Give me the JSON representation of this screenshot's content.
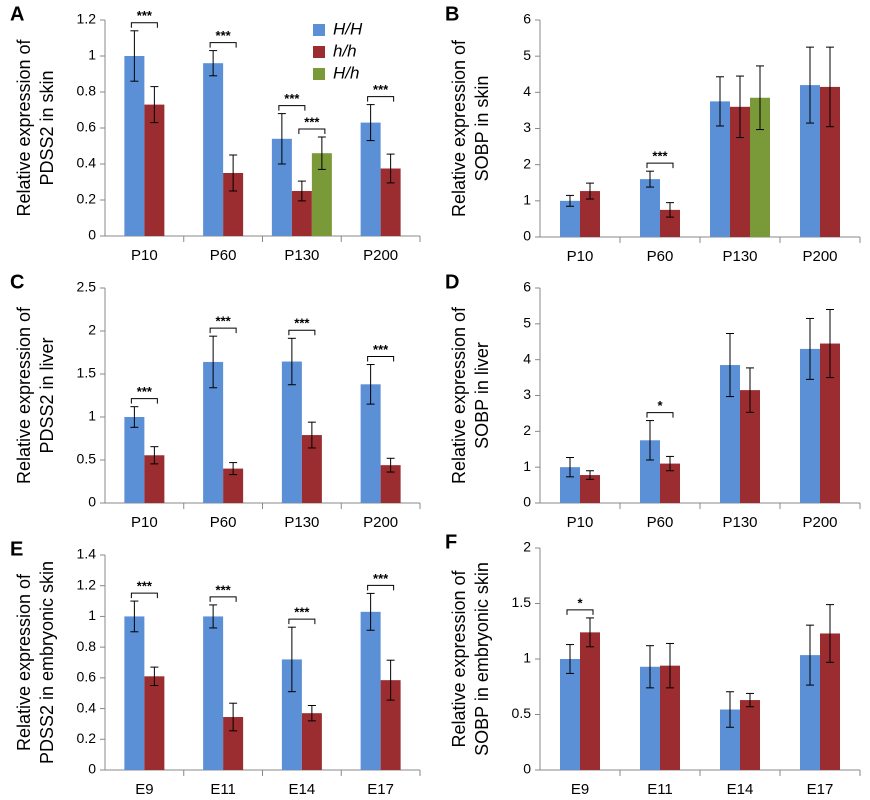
{
  "chart_data": [
    {
      "type": "bar",
      "label": "A",
      "ylabel": [
        "Relative expression of",
        "PDSS2 in skin"
      ],
      "categories": [
        "P10",
        "P60",
        "P130",
        "P200"
      ],
      "ylim": [
        0,
        1.2
      ],
      "yticks": [
        0,
        0.2,
        0.4,
        0.6,
        0.8,
        1,
        1.2
      ],
      "legend": true,
      "series": [
        {
          "name": "H/H",
          "color": "#5b8fd6",
          "values": [
            1.0,
            0.96,
            0.54,
            0.63
          ],
          "errors": [
            0.14,
            0.07,
            0.14,
            0.1
          ]
        },
        {
          "name": "h/h",
          "color": "#9b2d30",
          "values": [
            0.73,
            0.35,
            0.25,
            0.375
          ],
          "errors": [
            0.1,
            0.1,
            0.055,
            0.08
          ],
          "significance": [
            "***",
            "***",
            "***",
            "***"
          ]
        },
        {
          "name": "H/h",
          "color": "#7a9a3a",
          "values": [
            null,
            null,
            0.46,
            null
          ],
          "errors": [
            null,
            null,
            0.09,
            null
          ],
          "significance": [
            null,
            null,
            "***",
            null
          ]
        }
      ]
    },
    {
      "type": "bar",
      "label": "B",
      "ylabel": [
        "Relative expression of",
        "SOBP in skin"
      ],
      "categories": [
        "P10",
        "P60",
        "P130",
        "P200"
      ],
      "ylim": [
        0,
        6
      ],
      "yticks": [
        0,
        1,
        2,
        3,
        4,
        5,
        6
      ],
      "series": [
        {
          "name": "H/H",
          "color": "#5b8fd6",
          "values": [
            1.0,
            1.6,
            3.75,
            4.2
          ],
          "errors": [
            0.15,
            0.22,
            0.68,
            1.05
          ]
        },
        {
          "name": "h/h",
          "color": "#9b2d30",
          "values": [
            1.27,
            0.75,
            3.6,
            4.15
          ],
          "errors": [
            0.22,
            0.2,
            0.85,
            1.1
          ],
          "significance": [
            null,
            "***",
            null,
            null
          ]
        },
        {
          "name": "H/h",
          "color": "#7a9a3a",
          "values": [
            null,
            null,
            3.85,
            null
          ],
          "errors": [
            null,
            null,
            0.88,
            null
          ]
        }
      ]
    },
    {
      "type": "bar",
      "label": "C",
      "ylabel": [
        "Relative expression of",
        "PDSS2 in liver"
      ],
      "categories": [
        "P10",
        "P60",
        "P130",
        "P200"
      ],
      "ylim": [
        0,
        2.5
      ],
      "yticks": [
        0,
        0.5,
        1,
        1.5,
        2,
        2.5
      ],
      "series": [
        {
          "name": "H/H",
          "color": "#5b8fd6",
          "values": [
            1.0,
            1.64,
            1.645,
            1.38
          ],
          "errors": [
            0.12,
            0.3,
            0.27,
            0.23
          ]
        },
        {
          "name": "h/h",
          "color": "#9b2d30",
          "values": [
            0.555,
            0.4,
            0.79,
            0.44
          ],
          "errors": [
            0.1,
            0.07,
            0.15,
            0.08
          ],
          "significance": [
            "***",
            "***",
            "***",
            "***"
          ]
        }
      ]
    },
    {
      "type": "bar",
      "label": "D",
      "ylabel": [
        "Relative expression of",
        "SOBP in liver"
      ],
      "categories": [
        "P10",
        "P60",
        "P130",
        "P200"
      ],
      "ylim": [
        0,
        6
      ],
      "yticks": [
        0,
        1,
        2,
        3,
        4,
        5,
        6
      ],
      "series": [
        {
          "name": "H/H",
          "color": "#5b8fd6",
          "values": [
            1.0,
            1.75,
            3.85,
            4.3
          ],
          "errors": [
            0.27,
            0.55,
            0.88,
            0.85
          ]
        },
        {
          "name": "h/h",
          "color": "#9b2d30",
          "values": [
            0.78,
            1.1,
            3.15,
            4.45
          ],
          "errors": [
            0.12,
            0.2,
            0.62,
            0.95
          ],
          "significance": [
            null,
            "*",
            null,
            null
          ]
        }
      ]
    },
    {
      "type": "bar",
      "label": "E",
      "ylabel": [
        "Relative expression of",
        "PDSS2 in embryonic skin"
      ],
      "categories": [
        "E9",
        "E11",
        "E14",
        "E17"
      ],
      "ylim": [
        0,
        1.4
      ],
      "yticks": [
        0,
        0.2,
        0.4,
        0.6,
        0.8,
        1,
        1.2,
        1.4
      ],
      "series": [
        {
          "name": "H/H",
          "color": "#5b8fd6",
          "values": [
            1.0,
            1.0,
            0.72,
            1.03
          ],
          "errors": [
            0.1,
            0.075,
            0.21,
            0.12
          ]
        },
        {
          "name": "h/h",
          "color": "#9b2d30",
          "values": [
            0.61,
            0.345,
            0.37,
            0.585
          ],
          "errors": [
            0.06,
            0.09,
            0.05,
            0.13
          ],
          "significance": [
            "***",
            "***",
            "***",
            "***"
          ]
        }
      ]
    },
    {
      "type": "bar",
      "label": "F",
      "ylabel": [
        "Relative expression of",
        "SOBP in embryonic skin"
      ],
      "categories": [
        "E9",
        "E11",
        "E14",
        "E17"
      ],
      "ylim": [
        0,
        2
      ],
      "yticks": [
        0,
        0.5,
        1,
        1.5,
        2
      ],
      "series": [
        {
          "name": "H/H",
          "color": "#5b8fd6",
          "values": [
            1.0,
            0.93,
            0.545,
            1.035
          ],
          "errors": [
            0.13,
            0.19,
            0.16,
            0.27
          ]
        },
        {
          "name": "h/h",
          "color": "#9b2d30",
          "values": [
            1.24,
            0.94,
            0.63,
            1.23
          ],
          "errors": [
            0.13,
            0.2,
            0.06,
            0.26
          ],
          "significance": [
            "*",
            null,
            null,
            null
          ]
        }
      ]
    }
  ]
}
